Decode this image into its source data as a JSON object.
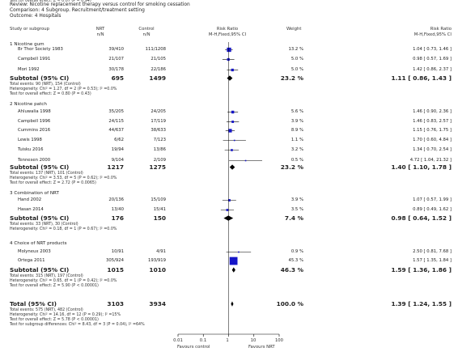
{
  "header": {
    "review": "Review:   Nicotine replacement therapy versus control for smoking cessation",
    "comparison": "Comparison:   4 Subgroup. Recruitment/treatment setting",
    "outcome": "Outcome:   4 Hospitals"
  },
  "columns": {
    "study": "Study or subgroup",
    "nrt": "NRT",
    "nrt_sub": "n/N",
    "control": "Control",
    "control_sub": "n/N",
    "rr": "Risk Ratio",
    "rr_sub": "M-H,Fixed,95% CI",
    "weight": "Weight",
    "rr2": "Risk Ratio",
    "rr2_sub": "M-H,Fixed,95% CI"
  },
  "axis": {
    "ticks": [
      "0.01",
      "0.1",
      "1",
      "10",
      "100"
    ],
    "left_label": "Favours control",
    "right_label": "Favours NRT"
  },
  "chart_data": {
    "type": "forest",
    "scale": "log",
    "xlim": [
      0.01,
      100
    ],
    "groups": [
      {
        "title": "1 Nicotine gum",
        "studies": [
          {
            "name": "Br Thor Society 1983",
            "nrt": "39/410",
            "control": "111/1208",
            "weight": "13.2 %",
            "ci": "1.04 [ 0.73, 1.46 ]",
            "rr": 1.04,
            "lo": 0.73,
            "hi": 1.46,
            "w": 13.2
          },
          {
            "name": "Campbell 1991",
            "nrt": "21/107",
            "control": "21/105",
            "weight": "5.0 %",
            "ci": "0.98 [ 0.57, 1.69 ]",
            "rr": 0.98,
            "lo": 0.57,
            "hi": 1.69,
            "w": 5.0
          },
          {
            "name": "Mori 1992",
            "nrt": "30/178",
            "control": "22/186",
            "weight": "5.0 %",
            "ci": "1.42 [ 0.86, 2.37 ]",
            "rr": 1.42,
            "lo": 0.86,
            "hi": 2.37,
            "w": 5.0
          }
        ],
        "subtotal": {
          "label": "Subtotal (95% CI)",
          "nrt": "695",
          "control": "1499",
          "weight": "23.2 %",
          "ci": "1.11 [ 0.86, 1.43 ]",
          "rr": 1.11,
          "lo": 0.86,
          "hi": 1.43
        },
        "notes": [
          "Total events: 90 (NRT), 154 (Control)",
          "Heterogeneity: Chi² = 1.27, df = 2 (P = 0.53); I² =0.0%",
          "Test for overall effect: Z = 0.80 (P = 0.43)"
        ]
      },
      {
        "title": "2 Nicotine patch",
        "studies": [
          {
            "name": "Ahluwalia 1998",
            "nrt": "35/205",
            "control": "24/205",
            "weight": "5.6 %",
            "ci": "1.46 [ 0.90, 2.36 ]",
            "rr": 1.46,
            "lo": 0.9,
            "hi": 2.36,
            "w": 5.6
          },
          {
            "name": "Campbell 1996",
            "nrt": "24/115",
            "control": "17/119",
            "weight": "3.9 %",
            "ci": "1.46 [ 0.83, 2.57 ]",
            "rr": 1.46,
            "lo": 0.83,
            "hi": 2.57,
            "w": 3.9
          },
          {
            "name": "Cummins 2016",
            "nrt": "44/637",
            "control": "38/633",
            "weight": "8.9 %",
            "ci": "1.15 [ 0.76, 1.75 ]",
            "rr": 1.15,
            "lo": 0.76,
            "hi": 1.75,
            "w": 8.9
          },
          {
            "name": "Lewis 1998",
            "nrt": "6/62",
            "control": "7/123",
            "weight": "1.1 %",
            "ci": "1.70 [ 0.60, 4.84 ]",
            "rr": 1.7,
            "lo": 0.6,
            "hi": 4.84,
            "w": 1.1
          },
          {
            "name": "Tuisku 2016",
            "nrt": "19/94",
            "control": "13/86",
            "weight": "3.2 %",
            "ci": "1.34 [ 0.70, 2.54 ]",
            "rr": 1.34,
            "lo": 0.7,
            "hi": 2.54,
            "w": 3.2
          },
          {
            "name": "Tennesen 2000",
            "nrt": "9/104",
            "control": "2/109",
            "weight": "0.5 %",
            "ci": "4.72 [ 1.04, 21.32 ]",
            "rr": 4.72,
            "lo": 1.04,
            "hi": 21.32,
            "w": 0.5
          }
        ],
        "subtotal": {
          "label": "Subtotal (95% CI)",
          "nrt": "1217",
          "control": "1275",
          "weight": "23.2 %",
          "ci": "1.40 [ 1.10, 1.78 ]",
          "rr": 1.4,
          "lo": 1.1,
          "hi": 1.78
        },
        "notes": [
          "Total events: 137 (NRT), 101 (Control)",
          "Heterogeneity: Chi² = 3.53, df = 5 (P = 0.62); I² =0.0%",
          "Test for overall effect: Z = 2.72 (P = 0.0065)"
        ]
      },
      {
        "title": "3 Combination of NRT",
        "studies": [
          {
            "name": "Hand 2002",
            "nrt": "20/136",
            "control": "15/109",
            "weight": "3.9 %",
            "ci": "1.07 [ 0.57, 1.99 ]",
            "rr": 1.07,
            "lo": 0.57,
            "hi": 1.99,
            "w": 3.9
          },
          {
            "name": "Hasan 2014",
            "nrt": "13/40",
            "control": "15/41",
            "weight": "3.5 %",
            "ci": "0.89 [ 0.49, 1.62 ]",
            "rr": 0.89,
            "lo": 0.49,
            "hi": 1.62,
            "w": 3.5
          }
        ],
        "subtotal": {
          "label": "Subtotal (95% CI)",
          "nrt": "176",
          "control": "150",
          "weight": "7.4 %",
          "ci": "0.98 [ 0.64, 1.52 ]",
          "rr": 0.98,
          "lo": 0.64,
          "hi": 1.52
        },
        "notes": [
          "Total events: 33 (NRT), 30 (Control)",
          "Heterogeneity: Chi² = 0.18, df = 1 (P = 0.67); I² =0.0%",
          "Test for overall effect: Z = 0.07 (P = 0.94)"
        ]
      },
      {
        "title": "4 Choice of NRT products",
        "studies": [
          {
            "name": "Molyneux 2003",
            "nrt": "10/91",
            "control": "4/91",
            "weight": "0.9 %",
            "ci": "2.50 [ 0.81, 7.68 ]",
            "rr": 2.5,
            "lo": 0.81,
            "hi": 7.68,
            "w": 0.9
          },
          {
            "name": "Ortega 2011",
            "nrt": "305/924",
            "control": "193/919",
            "weight": "45.3 %",
            "ci": "1.57 [ 1.35, 1.84 ]",
            "rr": 1.57,
            "lo": 1.35,
            "hi": 1.84,
            "w": 45.3
          }
        ],
        "subtotal": {
          "label": "Subtotal (95% CI)",
          "nrt": "1015",
          "control": "1010",
          "weight": "46.3 %",
          "ci": "1.59 [ 1.36, 1.86 ]",
          "rr": 1.59,
          "lo": 1.36,
          "hi": 1.86
        },
        "notes": [
          "Total events: 315 (NRT), 197 (Control)",
          "Heterogeneity: Chi² = 0.65, df = 1 (P = 0.42); I² =0.0%",
          "Test for overall effect: Z = 5.90 (P < 0.00001)"
        ]
      }
    ],
    "total": {
      "label": "Total (95% CI)",
      "nrt": "3103",
      "control": "3934",
      "weight": "100.0 %",
      "ci": "1.39 [ 1.24, 1.55 ]",
      "rr": 1.39,
      "lo": 1.24,
      "hi": 1.55,
      "notes": [
        "Total events: 575 (NRT), 482 (Control)",
        "Heterogeneity: Chi² = 14.16, df = 12 (P = 0.29); I² =15%",
        "Test for overall effect: Z = 5.78 (P < 0.00001)",
        "Test for subgroup differences: Chi² = 8.43, df = 3 (P = 0.04), I² =64%"
      ]
    }
  }
}
